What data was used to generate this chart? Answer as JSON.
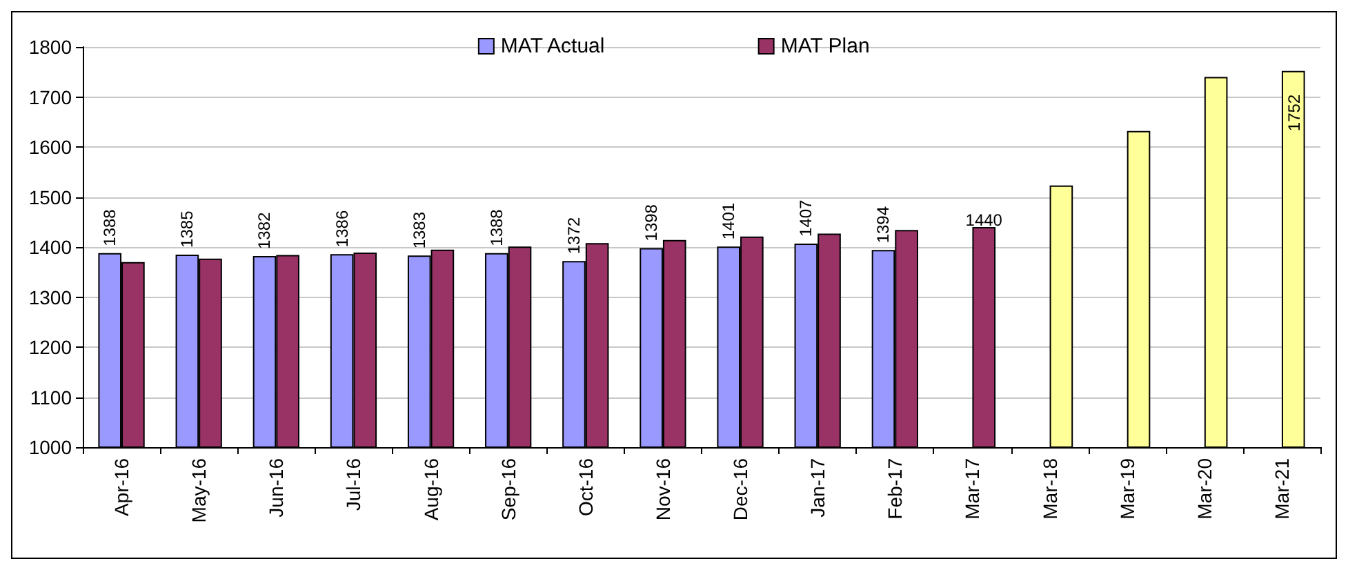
{
  "chart_data": {
    "type": "bar",
    "categories": [
      "Apr-16",
      "May-16",
      "Jun-16",
      "Jul-16",
      "Aug-16",
      "Sep-16",
      "Oct-16",
      "Nov-16",
      "Dec-16",
      "Jan-17",
      "Feb-17",
      "Mar-17",
      "Mar-18",
      "Mar-19",
      "Mar-20",
      "Mar-21"
    ],
    "series": [
      {
        "name": "MAT Actual",
        "color": "#9999ff",
        "values": [
          1388,
          1385,
          1382,
          1386,
          1383,
          1388,
          1372,
          1398,
          1401,
          1407,
          1394,
          null,
          null,
          null,
          null,
          null
        ],
        "data_labels": true
      },
      {
        "name": "MAT Plan",
        "color": "#993366",
        "colors": [
          "#993366",
          "#993366",
          "#993366",
          "#993366",
          "#993366",
          "#993366",
          "#993366",
          "#993366",
          "#993366",
          "#993366",
          "#993366",
          "#993366",
          "#ffff99",
          "#ffff99",
          "#ffff99",
          "#ffff99"
        ],
        "values": [
          1370,
          1377,
          1384,
          1389,
          1395,
          1401,
          1408,
          1414,
          1421,
          1427,
          1434,
          1440,
          1523,
          1632,
          1740,
          1752
        ],
        "value_labels": [
          null,
          null,
          null,
          null,
          null,
          null,
          null,
          null,
          null,
          null,
          null,
          "1440",
          null,
          null,
          null,
          "1752"
        ]
      }
    ],
    "ylim": [
      1000,
      1800
    ],
    "yticks": [
      1000,
      1100,
      1200,
      1300,
      1400,
      1500,
      1600,
      1700,
      1800
    ],
    "grid": "y",
    "legend": "top"
  }
}
